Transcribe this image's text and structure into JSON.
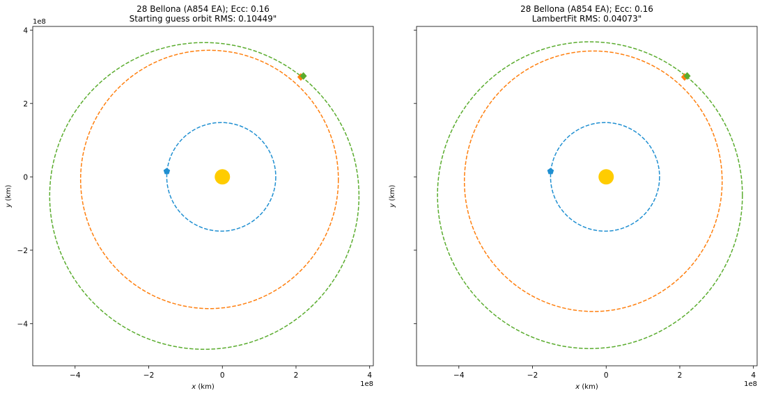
{
  "chart_data": [
    {
      "type": "scatter",
      "title_line1": "28 Bellona (A854 EA); Ecc: 0.16",
      "title_line2": "Starting guess orbit RMS: 0.10449\"",
      "xlabel": "$x$ (km)",
      "xlabel_var": "x",
      "xlabel_unit": " (km)",
      "ylabel_var": "y",
      "ylabel_unit": " (km)",
      "x_offset_text": "1e8",
      "y_offset_text": "1e8",
      "xlim": [
        -5.15,
        4.1
      ],
      "ylim": [
        -5.15,
        4.1
      ],
      "xticks": [
        -4,
        -2,
        0,
        2,
        4
      ],
      "yticks": [
        -4,
        -2,
        0,
        2,
        4
      ],
      "xtick_labels": [
        "−4",
        "−2",
        "0",
        "2",
        "4"
      ],
      "ytick_labels": [
        "−4",
        "−2",
        "0",
        "2",
        "4"
      ],
      "show_yticklabels": true,
      "grid": false,
      "sun": {
        "x": 0,
        "y": 0,
        "color": "#ffcc00"
      },
      "orbits": [
        {
          "color": "#1f8fd1",
          "cx": -0.03,
          "cy": 0.0,
          "rx": 1.48,
          "ry": 1.48,
          "marker": {
            "x": -1.51,
            "y": 0.15,
            "shape": "pentagon"
          }
        },
        {
          "color": "#ff7f0e",
          "cx": -0.35,
          "cy": -0.07,
          "rx": 3.5,
          "ry": 3.52,
          "marker": {
            "x": 2.13,
            "y": 2.72,
            "shape": "diamond"
          }
        },
        {
          "color": "#5aac2e",
          "cx": -0.49,
          "cy": -0.52,
          "rx": 4.2,
          "ry": 4.18,
          "marker": {
            "x": 2.2,
            "y": 2.75,
            "shape": "diamond"
          }
        }
      ]
    },
    {
      "type": "scatter",
      "title_line1": "28 Bellona (A854 EA); Ecc: 0.16",
      "title_line2": "LambertFit RMS: 0.04073\"",
      "xlabel_var": "x",
      "xlabel_unit": " (km)",
      "ylabel_var": "y",
      "ylabel_unit": " (km)",
      "x_offset_text": "1e8",
      "y_offset_text": "",
      "xlim": [
        -5.15,
        4.1
      ],
      "ylim": [
        -5.15,
        4.1
      ],
      "xticks": [
        -4,
        -2,
        0,
        2,
        4
      ],
      "yticks": [
        -4,
        -2,
        0,
        2,
        4
      ],
      "xtick_labels": [
        "−4",
        "−2",
        "0",
        "2",
        "4"
      ],
      "ytick_labels": [],
      "show_yticklabels": false,
      "grid": false,
      "sun": {
        "x": 0,
        "y": 0,
        "color": "#ffcc00"
      },
      "orbits": [
        {
          "color": "#1f8fd1",
          "cx": -0.03,
          "cy": 0.0,
          "rx": 1.48,
          "ry": 1.48,
          "marker": {
            "x": -1.51,
            "y": 0.15,
            "shape": "pentagon"
          }
        },
        {
          "color": "#ff7f0e",
          "cx": -0.35,
          "cy": -0.12,
          "rx": 3.5,
          "ry": 3.55,
          "marker": {
            "x": 2.13,
            "y": 2.72,
            "shape": "diamond"
          }
        },
        {
          "color": "#5aac2e",
          "cx": -0.44,
          "cy": -0.5,
          "rx": 4.14,
          "ry": 4.18,
          "marker": {
            "x": 2.2,
            "y": 2.75,
            "shape": "diamond"
          }
        }
      ]
    }
  ]
}
